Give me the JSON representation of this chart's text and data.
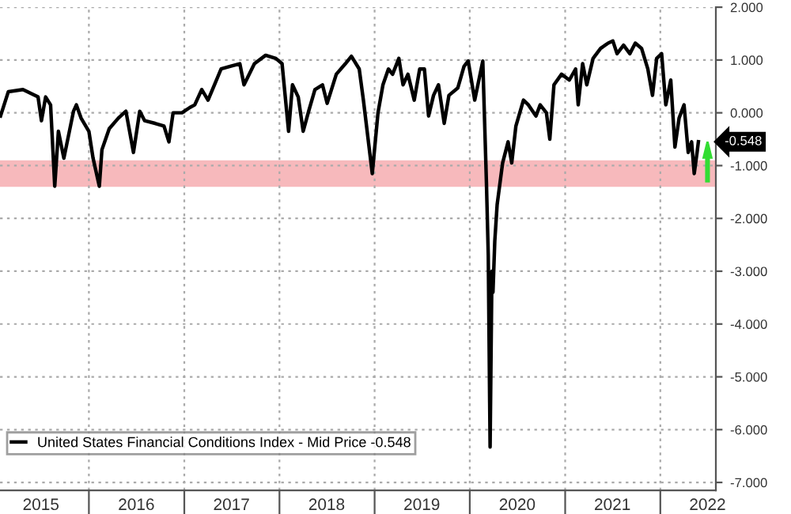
{
  "chart_data": {
    "type": "line",
    "x": [
      "2015-01-27",
      "2015-02-26",
      "2015-04-23",
      "2015-06-20",
      "2015-07-03",
      "2015-07-19",
      "2015-08-07",
      "2015-08-23",
      "2015-09-06",
      "2015-09-27",
      "2015-11-03",
      "2015-11-14",
      "2015-12-02",
      "2016-01-01",
      "2016-01-17",
      "2016-02-10",
      "2016-02-20",
      "2016-03-19",
      "2016-04-23",
      "2016-05-22",
      "2016-06-20",
      "2016-07-14",
      "2016-08-02",
      "2016-09-11",
      "2016-10-15",
      "2016-11-03",
      "2016-11-19",
      "2016-12-23",
      "2017-01-22",
      "2017-02-10",
      "2017-03-09",
      "2017-04-02",
      "2017-05-01",
      "2017-05-22",
      "2017-06-26",
      "2017-08-02",
      "2017-08-18",
      "2017-09-27",
      "2017-11-09",
      "2017-12-18",
      "2018-01-11",
      "2018-02-05",
      "2018-02-20",
      "2018-03-14",
      "2018-04-02",
      "2018-04-23",
      "2018-05-17",
      "2018-06-15",
      "2018-07-03",
      "2018-08-07",
      "2018-09-11",
      "2018-10-04",
      "2018-11-03",
      "2018-11-19",
      "2018-12-23",
      "2019-01-14",
      "2019-02-02",
      "2019-02-23",
      "2019-03-11",
      "2019-04-04",
      "2019-04-20",
      "2019-05-09",
      "2019-06-02",
      "2019-06-23",
      "2019-07-11",
      "2019-07-27",
      "2019-08-15",
      "2019-09-03",
      "2019-09-25",
      "2019-10-13",
      "2019-11-16",
      "2019-12-10",
      "2019-12-26",
      "2020-01-20",
      "2020-02-20",
      "2020-03-05",
      "2020-03-12",
      "2020-03-19",
      "2020-03-26",
      "2020-03-30",
      "2020-04-06",
      "2020-04-15",
      "2020-05-06",
      "2020-05-27",
      "2020-06-10",
      "2020-06-26",
      "2020-07-25",
      "2020-08-13",
      "2020-09-11",
      "2020-09-27",
      "2020-10-21",
      "2020-11-03",
      "2020-11-19",
      "2020-12-18",
      "2021-01-17",
      "2021-02-10",
      "2021-02-20",
      "2021-03-09",
      "2021-03-25",
      "2021-04-18",
      "2021-05-17",
      "2021-06-15",
      "2021-07-03",
      "2021-07-19",
      "2021-08-13",
      "2021-09-06",
      "2021-09-27",
      "2021-10-21",
      "2021-11-14",
      "2021-12-02",
      "2021-12-18",
      "2022-01-06",
      "2022-01-22",
      "2022-02-10",
      "2022-02-26",
      "2022-03-14",
      "2022-04-02",
      "2022-04-18",
      "2022-05-01",
      "2022-05-11",
      "2022-05-22",
      "2022-05-27"
    ],
    "series": [
      {
        "name": "United States Financial Conditions Index - Mid Price -0.548",
        "color": "#000000",
        "values": [
          -0.06,
          0.4,
          0.44,
          0.3,
          -0.15,
          0.3,
          0.15,
          -1.39,
          -0.35,
          -0.86,
          0.03,
          0.15,
          -0.1,
          -0.35,
          -0.86,
          -1.39,
          -0.7,
          -0.3,
          -0.1,
          0.03,
          -0.75,
          0.03,
          -0.15,
          -0.2,
          -0.25,
          -0.55,
          0.0,
          0.0,
          0.1,
          0.15,
          0.44,
          0.24,
          0.58,
          0.83,
          0.88,
          0.93,
          0.53,
          0.93,
          1.09,
          1.03,
          0.93,
          -0.35,
          0.53,
          0.3,
          -0.35,
          0.03,
          0.44,
          0.53,
          0.18,
          0.73,
          0.93,
          1.07,
          0.83,
          0.24,
          -1.15,
          0.0,
          0.53,
          0.83,
          0.73,
          1.03,
          0.53,
          0.73,
          0.24,
          0.83,
          0.83,
          -0.06,
          0.33,
          0.53,
          -0.2,
          0.33,
          0.47,
          0.88,
          0.98,
          0.24,
          0.98,
          -1.33,
          -2.7,
          -6.33,
          -3.0,
          -3.4,
          -2.43,
          -1.74,
          -0.95,
          -0.55,
          -0.95,
          -0.25,
          0.24,
          0.15,
          -0.06,
          0.15,
          0.0,
          -0.5,
          0.53,
          0.73,
          0.62,
          0.83,
          0.15,
          0.93,
          0.53,
          1.03,
          1.22,
          1.32,
          1.36,
          1.12,
          1.28,
          1.12,
          1.32,
          1.22,
          0.83,
          0.33,
          1.03,
          1.12,
          0.15,
          0.62,
          -0.65,
          -0.1,
          0.15,
          -0.75,
          -0.55,
          -1.15,
          -0.75,
          -0.548
        ]
      }
    ],
    "xlim": [
      "2015-01-25",
      "2022-08-02"
    ],
    "xticks": [
      {
        "value": "2015-07-01",
        "label": "2015"
      },
      {
        "value": "2016-01-01",
        "label": null
      },
      {
        "value": "2016-07-01",
        "label": "2016"
      },
      {
        "value": "2017-01-01",
        "label": null
      },
      {
        "value": "2017-07-01",
        "label": "2017"
      },
      {
        "value": "2018-01-01",
        "label": null
      },
      {
        "value": "2018-07-01",
        "label": "2018"
      },
      {
        "value": "2019-01-01",
        "label": null
      },
      {
        "value": "2019-07-01",
        "label": "2019"
      },
      {
        "value": "2020-01-01",
        "label": null
      },
      {
        "value": "2020-07-01",
        "label": "2020"
      },
      {
        "value": "2021-01-01",
        "label": null
      },
      {
        "value": "2021-07-01",
        "label": "2021"
      },
      {
        "value": "2022-01-01",
        "label": null
      },
      {
        "value": "2022-07-01",
        "label": "2022"
      }
    ],
    "ylim": [
      -7.15,
      2.0
    ],
    "yticks": [
      {
        "value": 2,
        "label": "2.000"
      },
      {
        "value": 1,
        "label": "1.000"
      },
      {
        "value": 0,
        "label": "0.000"
      },
      {
        "value": -1,
        "label": "-1.000"
      },
      {
        "value": -2,
        "label": "-2.000"
      },
      {
        "value": -3,
        "label": "-3.000"
      },
      {
        "value": -4,
        "label": "-4.000"
      },
      {
        "value": -5,
        "label": "-5.000"
      },
      {
        "value": -6,
        "label": "-6.000"
      },
      {
        "value": -7,
        "label": "-7.000"
      }
    ],
    "bands": [
      {
        "axis": "y",
        "from": -1.4,
        "to": -0.9,
        "color": "#f7b9bc"
      }
    ],
    "annotations": [
      {
        "text": "-0.548",
        "x": "2022-05-27",
        "y": -0.548
      }
    ],
    "grid": true,
    "legend": "bottom left",
    "line_style": "solid",
    "marker": "none"
  }
}
